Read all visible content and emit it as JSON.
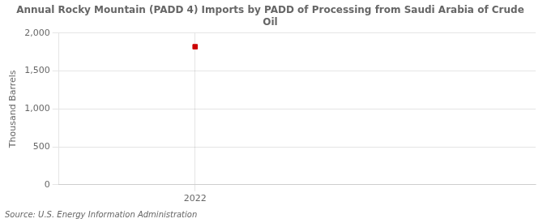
{
  "chart_data": {
    "type": "scatter",
    "title": "Annual Rocky Mountain (PADD 4) Imports by PADD of Processing from Saudi Arabia of Crude\nOil",
    "y_label": "Thousand Barrels",
    "source": "Source: U.S. Energy Information Administration",
    "x": [
      2022
    ],
    "values": [
      1820
    ],
    "color": "#cc0000",
    "marker": "square",
    "xlim": [
      2021.4,
      2023.5
    ],
    "xticks": [
      2022
    ],
    "ylim": [
      0,
      2000
    ],
    "yticks": [
      0,
      500,
      {
        "value": 1000,
        "label": "1,000"
      },
      {
        "value": 1500,
        "label": "1,500"
      },
      {
        "value": 2000,
        "label": "2,000"
      }
    ],
    "grid": true
  }
}
